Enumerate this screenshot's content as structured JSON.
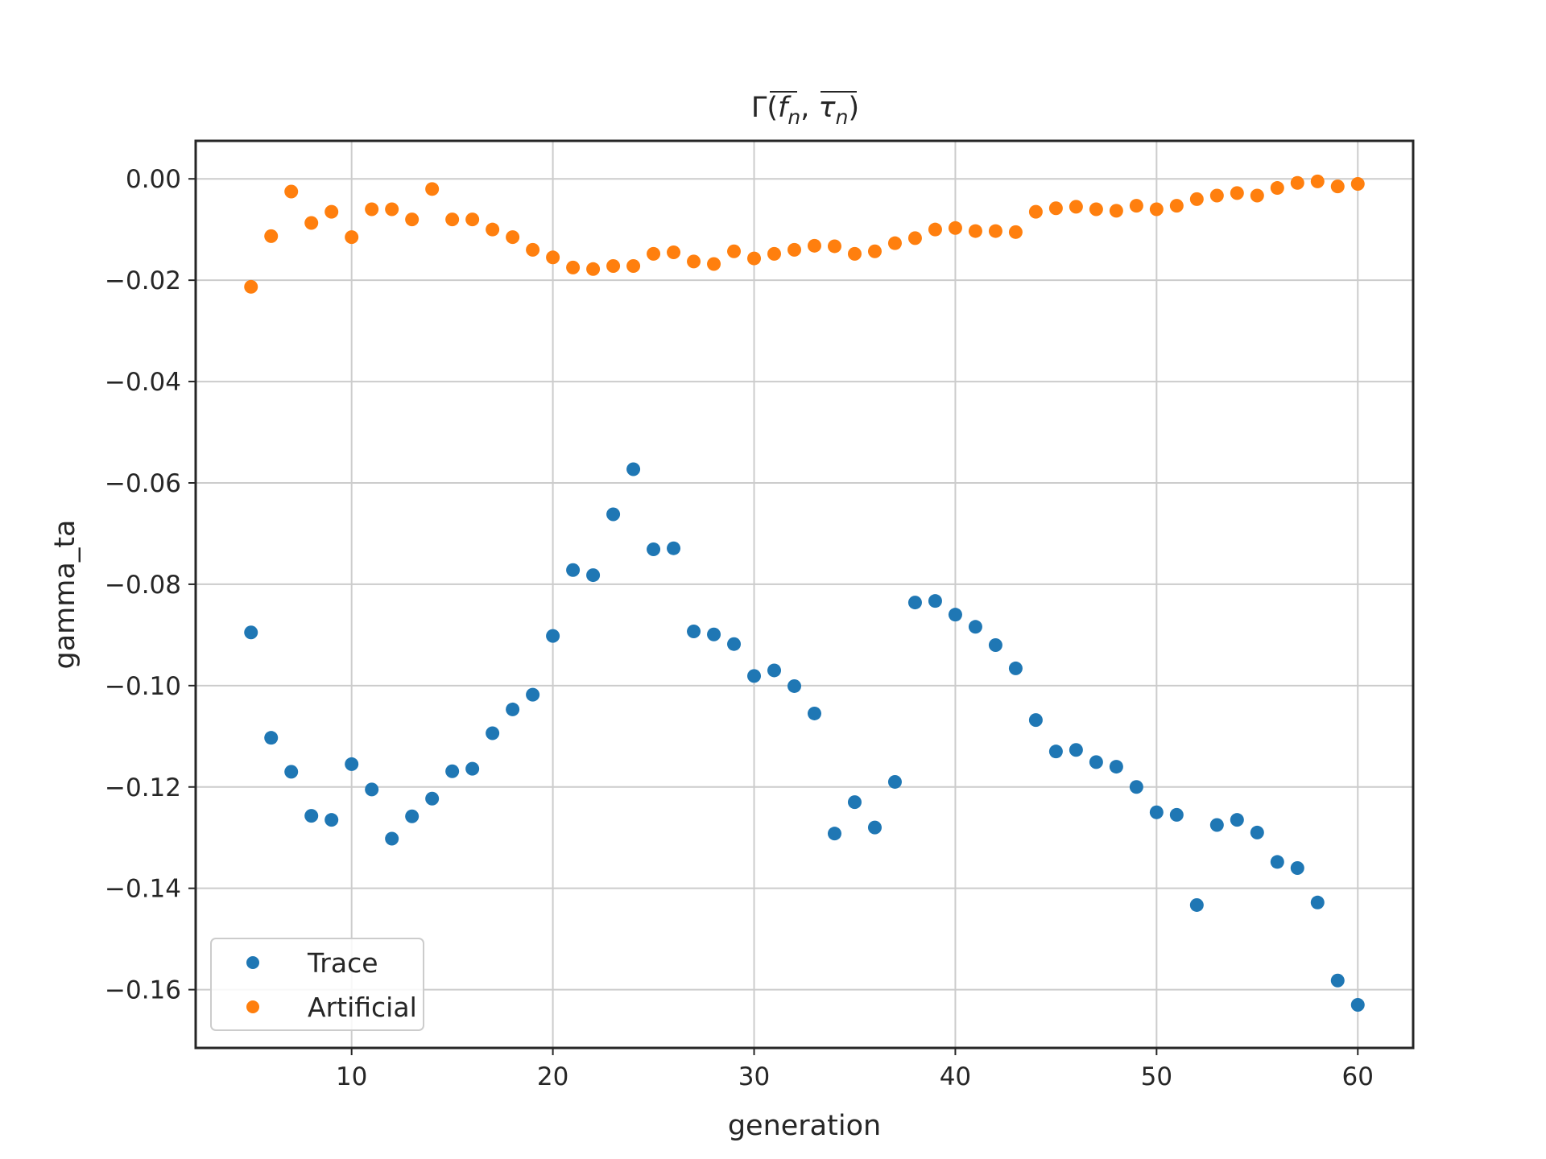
{
  "chart_data": {
    "type": "scatter",
    "title": "Γ(f̅ₙ, τ̅ₙ)",
    "title_parts": {
      "prefix": "Γ(",
      "f": "f",
      "sep": ", ",
      "tau": "τ",
      "sub": "n",
      "suffix": ")"
    },
    "xlabel": "generation",
    "ylabel": "gamma_ta",
    "xlim": [
      2.25,
      62.75
    ],
    "ylim": [
      -0.1715,
      0.0075
    ],
    "xticks": [
      10,
      20,
      30,
      40,
      50,
      60
    ],
    "xtick_labels": [
      "10",
      "20",
      "30",
      "40",
      "50",
      "60"
    ],
    "yticks": [
      0.0,
      -0.02,
      -0.04,
      -0.06,
      -0.08,
      -0.1,
      -0.12,
      -0.14,
      -0.16
    ],
    "ytick_labels": [
      "0.00",
      "−0.02",
      "−0.04",
      "−0.06",
      "−0.08",
      "−0.10",
      "−0.12",
      "−0.14",
      "−0.16"
    ],
    "grid": true,
    "legend_position": "lower-left",
    "x": [
      5,
      6,
      7,
      8,
      9,
      10,
      11,
      12,
      13,
      14,
      15,
      16,
      17,
      18,
      19,
      20,
      21,
      22,
      23,
      24,
      25,
      26,
      27,
      28,
      29,
      30,
      31,
      32,
      33,
      34,
      35,
      36,
      37,
      38,
      39,
      40,
      41,
      42,
      43,
      44,
      45,
      46,
      47,
      48,
      49,
      50,
      51,
      52,
      53,
      54,
      55,
      56,
      57,
      58,
      59,
      60
    ],
    "series": [
      {
        "name": "Trace",
        "color": "#1f77b4",
        "values": [
          -0.0895,
          -0.1103,
          -0.117,
          -0.1257,
          -0.1265,
          -0.1155,
          -0.1205,
          -0.1302,
          -0.1258,
          -0.1223,
          -0.1169,
          -0.1164,
          -0.1094,
          -0.1047,
          -0.1018,
          -0.0902,
          -0.0772,
          -0.0782,
          -0.0662,
          -0.0573,
          -0.0731,
          -0.0729,
          -0.0893,
          -0.0899,
          -0.0918,
          -0.0981,
          -0.097,
          -0.1001,
          -0.1055,
          -0.1292,
          -0.123,
          -0.128,
          -0.119,
          -0.0836,
          -0.0833,
          -0.086,
          -0.0884,
          -0.092,
          -0.0966,
          -0.1068,
          -0.113,
          -0.1127,
          -0.1151,
          -0.116,
          -0.12,
          -0.125,
          -0.1255,
          -0.1433,
          -0.1275,
          -0.1265,
          -0.129,
          -0.1348,
          -0.136,
          -0.1428,
          -0.1582,
          -0.163
        ]
      },
      {
        "name": "Artificial",
        "color": "#ff7f0e",
        "values": [
          -0.0213,
          -0.0113,
          -0.0025,
          -0.0087,
          -0.0065,
          -0.0115,
          -0.006,
          -0.006,
          -0.008,
          -0.002,
          -0.008,
          -0.008,
          -0.01,
          -0.0115,
          -0.014,
          -0.0155,
          -0.0175,
          -0.0178,
          -0.0172,
          -0.0172,
          -0.0148,
          -0.0145,
          -0.0163,
          -0.0168,
          -0.0143,
          -0.0157,
          -0.0148,
          -0.014,
          -0.0132,
          -0.0133,
          -0.0148,
          -0.0143,
          -0.0127,
          -0.0117,
          -0.01,
          -0.0097,
          -0.0103,
          -0.0103,
          -0.0105,
          -0.0065,
          -0.0058,
          -0.0055,
          -0.006,
          -0.0063,
          -0.0053,
          -0.006,
          -0.0053,
          -0.004,
          -0.0033,
          -0.0028,
          -0.0033,
          -0.0018,
          -0.0008,
          -0.0005,
          -0.0015,
          -0.001
        ]
      }
    ]
  }
}
